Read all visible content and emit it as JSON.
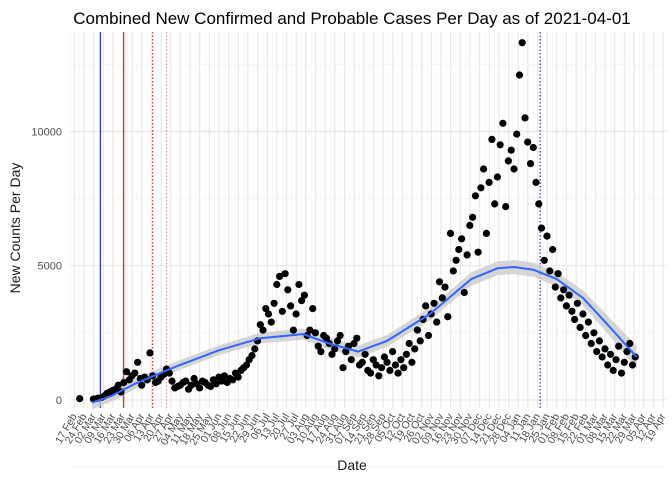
{
  "chart_data": {
    "type": "scatter",
    "title": "Combined New Confirmed and Probable Cases Per Day as of 2021-04-01",
    "xlabel": "Date",
    "ylabel": "New Counts Per Day",
    "x_range": [
      "2020-02-14",
      "2021-04-22"
    ],
    "ylim": [
      -300,
      13700
    ],
    "y_ticks": [
      0,
      5000,
      10000
    ],
    "x_tick_labels": [
      "17 Feb",
      "24 Feb",
      "02 Mar",
      "09 Mar",
      "16 Mar",
      "23 Mar",
      "30 Mar",
      "06 Apr",
      "13 Apr",
      "20 Apr",
      "27 Apr",
      "04 May",
      "11 May",
      "18 May",
      "25 May",
      "01 Jun",
      "08 Jun",
      "15 Jun",
      "22 Jun",
      "29 Jun",
      "06 Jul",
      "13 Jul",
      "20 Jul",
      "27 Jul",
      "03 Aug",
      "10 Aug",
      "17 Aug",
      "24 Aug",
      "31 Aug",
      "07 Sep",
      "14 Sep",
      "21 Sep",
      "28 Sep",
      "05 Oct",
      "12 Oct",
      "19 Oct",
      "26 Oct",
      "02 Nov",
      "09 Nov",
      "16 Nov",
      "23 Nov",
      "30 Nov",
      "07 Dec",
      "14 Dec",
      "21 Dec",
      "28 Dec",
      "04 Jan",
      "11 Jan",
      "18 Jan",
      "25 Jan",
      "01 Feb",
      "08 Feb",
      "15 Feb",
      "22 Feb",
      "01 Mar",
      "08 Mar",
      "15 Mar",
      "22 Mar",
      "29 Mar",
      "05 Apr",
      "12 Apr",
      "19 Apr"
    ],
    "x_tick_dates": [
      "2020-02-17",
      "2020-02-24",
      "2020-03-02",
      "2020-03-09",
      "2020-03-16",
      "2020-03-23",
      "2020-03-30",
      "2020-04-06",
      "2020-04-13",
      "2020-04-20",
      "2020-04-27",
      "2020-05-04",
      "2020-05-11",
      "2020-05-18",
      "2020-05-25",
      "2020-06-01",
      "2020-06-08",
      "2020-06-15",
      "2020-06-22",
      "2020-06-29",
      "2020-07-06",
      "2020-07-13",
      "2020-07-20",
      "2020-07-27",
      "2020-08-03",
      "2020-08-10",
      "2020-08-17",
      "2020-08-24",
      "2020-08-31",
      "2020-09-07",
      "2020-09-14",
      "2020-09-21",
      "2020-09-28",
      "2020-10-05",
      "2020-10-12",
      "2020-10-19",
      "2020-10-26",
      "2020-11-02",
      "2020-11-09",
      "2020-11-16",
      "2020-11-23",
      "2020-11-30",
      "2020-12-07",
      "2020-12-14",
      "2020-12-21",
      "2020-12-28",
      "2021-01-04",
      "2021-01-11",
      "2021-01-18",
      "2021-01-25",
      "2021-02-01",
      "2021-02-08",
      "2021-02-15",
      "2021-02-22",
      "2021-03-01",
      "2021-03-08",
      "2021-03-15",
      "2021-03-22",
      "2021-03-29",
      "2021-04-05",
      "2021-04-12",
      "2021-04-19"
    ],
    "reference_lines": [
      {
        "date": "2020-03-07",
        "color": "#0000cc",
        "style": "solid"
      },
      {
        "date": "2020-03-24",
        "color": "#cc0000",
        "style": "solid"
      },
      {
        "date": "2020-04-14",
        "color": "#cc0000",
        "style": "dotted"
      },
      {
        "date": "2020-04-24",
        "color": "#e08080",
        "style": "dotted"
      },
      {
        "date": "2021-01-20",
        "color": "#000080",
        "style": "dotted"
      }
    ],
    "smooth": {
      "color": "#3366ff",
      "band_color": "#c8c8c8",
      "x": [
        "2020-03-01",
        "2020-03-15",
        "2020-04-01",
        "2020-05-01",
        "2020-06-01",
        "2020-07-01",
        "2020-08-01",
        "2020-08-20",
        "2020-09-10",
        "2020-10-01",
        "2020-11-01",
        "2020-12-01",
        "2020-12-20",
        "2021-01-01",
        "2021-01-15",
        "2021-02-01",
        "2021-02-20",
        "2021-03-10",
        "2021-03-31"
      ],
      "y": [
        -100,
        150,
        600,
        1250,
        1850,
        2300,
        2450,
        2100,
        1800,
        2200,
        3200,
        4500,
        4900,
        4950,
        4850,
        4500,
        3800,
        2800,
        1600
      ],
      "band_halfwidth": [
        250,
        220,
        200,
        180,
        180,
        200,
        210,
        220,
        220,
        220,
        230,
        250,
        260,
        260,
        260,
        260,
        280,
        330,
        420
      ]
    },
    "series": [
      {
        "color": "#000000",
        "points": [
          [
            "2020-02-21",
            50
          ],
          [
            "2020-03-02",
            30
          ],
          [
            "2020-03-05",
            60
          ],
          [
            "2020-03-08",
            100
          ],
          [
            "2020-03-10",
            150
          ],
          [
            "2020-03-12",
            250
          ],
          [
            "2020-03-14",
            300
          ],
          [
            "2020-03-16",
            350
          ],
          [
            "2020-03-18",
            400
          ],
          [
            "2020-03-20",
            550
          ],
          [
            "2020-03-22",
            300
          ],
          [
            "2020-03-24",
            650
          ],
          [
            "2020-03-26",
            1050
          ],
          [
            "2020-03-28",
            750
          ],
          [
            "2020-03-30",
            900
          ],
          [
            "2020-04-01",
            1000
          ],
          [
            "2020-04-03",
            1400
          ],
          [
            "2020-04-05",
            800
          ],
          [
            "2020-04-06",
            550
          ],
          [
            "2020-04-08",
            850
          ],
          [
            "2020-04-10",
            750
          ],
          [
            "2020-04-12",
            1750
          ],
          [
            "2020-04-14",
            900
          ],
          [
            "2020-04-16",
            650
          ],
          [
            "2020-04-18",
            700
          ],
          [
            "2020-04-20",
            850
          ],
          [
            "2020-04-22",
            950
          ],
          [
            "2020-04-24",
            1150
          ],
          [
            "2020-04-26",
            1000
          ],
          [
            "2020-04-28",
            700
          ],
          [
            "2020-04-30",
            450
          ],
          [
            "2020-05-02",
            500
          ],
          [
            "2020-05-04",
            550
          ],
          [
            "2020-05-06",
            650
          ],
          [
            "2020-05-08",
            700
          ],
          [
            "2020-05-10",
            400
          ],
          [
            "2020-05-12",
            550
          ],
          [
            "2020-05-14",
            800
          ],
          [
            "2020-05-16",
            600
          ],
          [
            "2020-05-18",
            450
          ],
          [
            "2020-05-20",
            700
          ],
          [
            "2020-05-22",
            650
          ],
          [
            "2020-05-24",
            550
          ],
          [
            "2020-05-26",
            500
          ],
          [
            "2020-05-28",
            750
          ],
          [
            "2020-05-30",
            600
          ],
          [
            "2020-06-01",
            850
          ],
          [
            "2020-06-03",
            700
          ],
          [
            "2020-06-05",
            900
          ],
          [
            "2020-06-07",
            650
          ],
          [
            "2020-06-09",
            800
          ],
          [
            "2020-06-11",
            750
          ],
          [
            "2020-06-13",
            1000
          ],
          [
            "2020-06-15",
            850
          ],
          [
            "2020-06-17",
            1100
          ],
          [
            "2020-06-19",
            1200
          ],
          [
            "2020-06-21",
            1300
          ],
          [
            "2020-06-23",
            1500
          ],
          [
            "2020-06-25",
            1650
          ],
          [
            "2020-06-27",
            1900
          ],
          [
            "2020-06-29",
            2200
          ],
          [
            "2020-07-01",
            2800
          ],
          [
            "2020-07-03",
            2600
          ],
          [
            "2020-07-05",
            3400
          ],
          [
            "2020-07-07",
            3200
          ],
          [
            "2020-07-09",
            2900
          ],
          [
            "2020-07-11",
            3600
          ],
          [
            "2020-07-13",
            4300
          ],
          [
            "2020-07-15",
            4600
          ],
          [
            "2020-07-17",
            3300
          ],
          [
            "2020-07-19",
            4700
          ],
          [
            "2020-07-21",
            4100
          ],
          [
            "2020-07-23",
            3500
          ],
          [
            "2020-07-25",
            2600
          ],
          [
            "2020-07-27",
            3200
          ],
          [
            "2020-07-29",
            4300
          ],
          [
            "2020-07-31",
            3700
          ],
          [
            "2020-08-02",
            3900
          ],
          [
            "2020-08-04",
            2400
          ],
          [
            "2020-08-06",
            2600
          ],
          [
            "2020-08-08",
            3400
          ],
          [
            "2020-08-10",
            2500
          ],
          [
            "2020-08-12",
            2000
          ],
          [
            "2020-08-14",
            1800
          ],
          [
            "2020-08-16",
            2400
          ],
          [
            "2020-08-18",
            2300
          ],
          [
            "2020-08-20",
            2100
          ],
          [
            "2020-08-22",
            1700
          ],
          [
            "2020-08-24",
            1900
          ],
          [
            "2020-08-26",
            2200
          ],
          [
            "2020-08-28",
            2400
          ],
          [
            "2020-08-30",
            1200
          ],
          [
            "2020-09-01",
            1800
          ],
          [
            "2020-09-03",
            2000
          ],
          [
            "2020-09-05",
            1500
          ],
          [
            "2020-09-07",
            2100
          ],
          [
            "2020-09-09",
            2300
          ],
          [
            "2020-09-11",
            1300
          ],
          [
            "2020-09-13",
            1400
          ],
          [
            "2020-09-15",
            1700
          ],
          [
            "2020-09-17",
            1100
          ],
          [
            "2020-09-19",
            1000
          ],
          [
            "2020-09-21",
            1500
          ],
          [
            "2020-09-23",
            1300
          ],
          [
            "2020-09-25",
            900
          ],
          [
            "2020-09-27",
            1200
          ],
          [
            "2020-09-29",
            1600
          ],
          [
            "2020-10-01",
            1400
          ],
          [
            "2020-10-03",
            1100
          ],
          [
            "2020-10-05",
            1800
          ],
          [
            "2020-10-07",
            1300
          ],
          [
            "2020-10-09",
            1000
          ],
          [
            "2020-10-11",
            1500
          ],
          [
            "2020-10-13",
            1200
          ],
          [
            "2020-10-15",
            1700
          ],
          [
            "2020-10-17",
            2100
          ],
          [
            "2020-10-19",
            1400
          ],
          [
            "2020-10-21",
            1900
          ],
          [
            "2020-10-23",
            2600
          ],
          [
            "2020-10-25",
            2200
          ],
          [
            "2020-10-27",
            3000
          ],
          [
            "2020-10-29",
            3500
          ],
          [
            "2020-10-31",
            2400
          ],
          [
            "2020-11-02",
            3200
          ],
          [
            "2020-11-04",
            3600
          ],
          [
            "2020-11-06",
            2900
          ],
          [
            "2020-11-08",
            4400
          ],
          [
            "2020-11-10",
            3800
          ],
          [
            "2020-11-12",
            4200
          ],
          [
            "2020-11-14",
            3100
          ],
          [
            "2020-11-16",
            6200
          ],
          [
            "2020-11-18",
            4800
          ],
          [
            "2020-11-20",
            5200
          ],
          [
            "2020-11-22",
            5600
          ],
          [
            "2020-11-24",
            6000
          ],
          [
            "2020-11-26",
            4000
          ],
          [
            "2020-11-28",
            5400
          ],
          [
            "2020-11-30",
            6500
          ],
          [
            "2020-12-02",
            6800
          ],
          [
            "2020-12-04",
            7600
          ],
          [
            "2020-12-06",
            5500
          ],
          [
            "2020-12-08",
            7900
          ],
          [
            "2020-12-10",
            8600
          ],
          [
            "2020-12-12",
            6200
          ],
          [
            "2020-12-14",
            8100
          ],
          [
            "2020-12-16",
            9700
          ],
          [
            "2020-12-18",
            7300
          ],
          [
            "2020-12-20",
            8300
          ],
          [
            "2020-12-22",
            9500
          ],
          [
            "2020-12-24",
            10300
          ],
          [
            "2020-12-26",
            7200
          ],
          [
            "2020-12-28",
            8900
          ],
          [
            "2020-12-30",
            9300
          ],
          [
            "2021-01-01",
            8600
          ],
          [
            "2021-01-03",
            9900
          ],
          [
            "2021-01-05",
            12100
          ],
          [
            "2021-01-07",
            13300
          ],
          [
            "2021-01-09",
            10500
          ],
          [
            "2021-01-11",
            9600
          ],
          [
            "2021-01-13",
            8800
          ],
          [
            "2021-01-15",
            9400
          ],
          [
            "2021-01-17",
            8100
          ],
          [
            "2021-01-19",
            7300
          ],
          [
            "2021-01-21",
            6400
          ],
          [
            "2021-01-23",
            5200
          ],
          [
            "2021-01-25",
            6100
          ],
          [
            "2021-01-27",
            4800
          ],
          [
            "2021-01-29",
            5600
          ],
          [
            "2021-01-31",
            4200
          ],
          [
            "2021-02-02",
            4700
          ],
          [
            "2021-02-04",
            3800
          ],
          [
            "2021-02-06",
            4100
          ],
          [
            "2021-02-08",
            3500
          ],
          [
            "2021-02-10",
            3900
          ],
          [
            "2021-02-12",
            3300
          ],
          [
            "2021-02-14",
            3000
          ],
          [
            "2021-02-16",
            3600
          ],
          [
            "2021-02-18",
            2700
          ],
          [
            "2021-02-20",
            3200
          ],
          [
            "2021-02-22",
            2400
          ],
          [
            "2021-02-24",
            2900
          ],
          [
            "2021-02-26",
            2100
          ],
          [
            "2021-02-28",
            2500
          ],
          [
            "2021-03-02",
            1800
          ],
          [
            "2021-03-04",
            2200
          ],
          [
            "2021-03-06",
            1600
          ],
          [
            "2021-03-08",
            1900
          ],
          [
            "2021-03-10",
            1300
          ],
          [
            "2021-03-12",
            1700
          ],
          [
            "2021-03-14",
            1100
          ],
          [
            "2021-03-16",
            1500
          ],
          [
            "2021-03-18",
            2000
          ],
          [
            "2021-03-20",
            1000
          ],
          [
            "2021-03-22",
            1400
          ],
          [
            "2021-03-24",
            1800
          ],
          [
            "2021-03-26",
            2100
          ],
          [
            "2021-03-28",
            1300
          ],
          [
            "2021-03-30",
            1600
          ]
        ]
      }
    ]
  }
}
